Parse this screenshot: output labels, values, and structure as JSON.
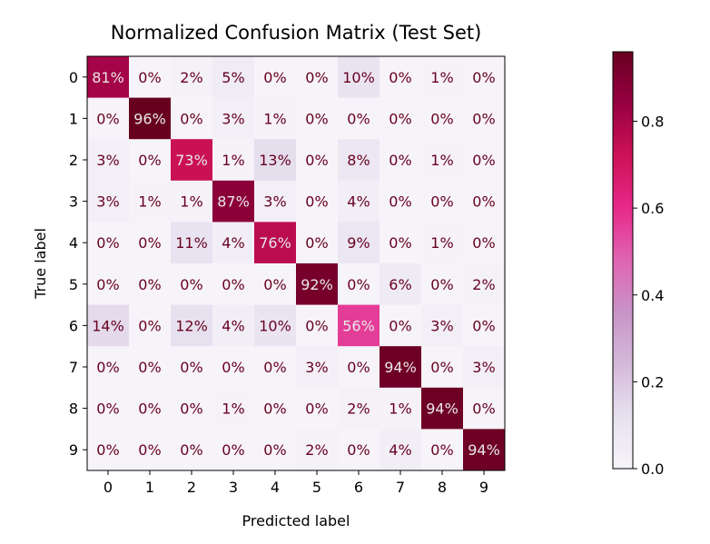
{
  "chart_data": {
    "type": "heatmap",
    "title": "Normalized Confusion Matrix (Test Set)",
    "xlabel": "Predicted label",
    "ylabel": "True label",
    "x_categories": [
      "0",
      "1",
      "2",
      "3",
      "4",
      "5",
      "6",
      "7",
      "8",
      "9"
    ],
    "y_categories": [
      "0",
      "1",
      "2",
      "3",
      "4",
      "5",
      "6",
      "7",
      "8",
      "9"
    ],
    "values": [
      [
        0.81,
        0.0,
        0.02,
        0.05,
        0.0,
        0.0,
        0.1,
        0.0,
        0.01,
        0.0
      ],
      [
        0.0,
        0.96,
        0.0,
        0.03,
        0.01,
        0.0,
        0.0,
        0.0,
        0.0,
        0.0
      ],
      [
        0.03,
        0.0,
        0.73,
        0.01,
        0.13,
        0.0,
        0.08,
        0.0,
        0.01,
        0.0
      ],
      [
        0.03,
        0.01,
        0.01,
        0.87,
        0.03,
        0.0,
        0.04,
        0.0,
        0.0,
        0.0
      ],
      [
        0.0,
        0.0,
        0.11,
        0.04,
        0.76,
        0.0,
        0.09,
        0.0,
        0.01,
        0.0
      ],
      [
        0.0,
        0.0,
        0.0,
        0.0,
        0.0,
        0.92,
        0.0,
        0.06,
        0.0,
        0.02
      ],
      [
        0.14,
        0.0,
        0.12,
        0.04,
        0.1,
        0.0,
        0.56,
        0.0,
        0.03,
        0.0
      ],
      [
        0.0,
        0.0,
        0.0,
        0.0,
        0.0,
        0.03,
        0.0,
        0.94,
        0.0,
        0.03
      ],
      [
        0.0,
        0.0,
        0.0,
        0.01,
        0.0,
        0.0,
        0.02,
        0.01,
        0.94,
        0.0
      ],
      [
        0.0,
        0.0,
        0.0,
        0.0,
        0.0,
        0.02,
        0.0,
        0.04,
        0.0,
        0.94
      ]
    ],
    "cell_labels": [
      [
        "81%",
        "0%",
        "2%",
        "5%",
        "0%",
        "0%",
        "10%",
        "0%",
        "1%",
        "0%"
      ],
      [
        "0%",
        "96%",
        "0%",
        "3%",
        "1%",
        "0%",
        "0%",
        "0%",
        "0%",
        "0%"
      ],
      [
        "3%",
        "0%",
        "73%",
        "1%",
        "13%",
        "0%",
        "8%",
        "0%",
        "1%",
        "0%"
      ],
      [
        "3%",
        "1%",
        "1%",
        "87%",
        "3%",
        "0%",
        "4%",
        "0%",
        "0%",
        "0%"
      ],
      [
        "0%",
        "0%",
        "11%",
        "4%",
        "76%",
        "0%",
        "9%",
        "0%",
        "1%",
        "0%"
      ],
      [
        "0%",
        "0%",
        "0%",
        "0%",
        "0%",
        "92%",
        "0%",
        "6%",
        "0%",
        "2%"
      ],
      [
        "14%",
        "0%",
        "12%",
        "4%",
        "10%",
        "0%",
        "56%",
        "0%",
        "3%",
        "0%"
      ],
      [
        "0%",
        "0%",
        "0%",
        "0%",
        "0%",
        "3%",
        "0%",
        "94%",
        "0%",
        "3%"
      ],
      [
        "0%",
        "0%",
        "0%",
        "1%",
        "0%",
        "0%",
        "2%",
        "1%",
        "94%",
        "0%"
      ],
      [
        "0%",
        "0%",
        "0%",
        "0%",
        "0%",
        "2%",
        "0%",
        "4%",
        "0%",
        "94%"
      ]
    ],
    "colormap": "PuRd",
    "color_range": [
      0,
      0.96
    ],
    "colorbar": {
      "ticks": [
        0.0,
        0.2,
        0.4,
        0.6,
        0.8
      ],
      "tick_labels": [
        "0.0",
        "0.2",
        "0.4",
        "0.6",
        "0.8"
      ]
    },
    "colorscale": [
      "#f7f4f9",
      "#e7e1ef",
      "#d4b9da",
      "#c994c7",
      "#df65b0",
      "#e7298a",
      "#ce1256",
      "#980043",
      "#67001f"
    ],
    "text_colors": {
      "dark": "#e8e8e8",
      "light": "#67001f"
    }
  }
}
